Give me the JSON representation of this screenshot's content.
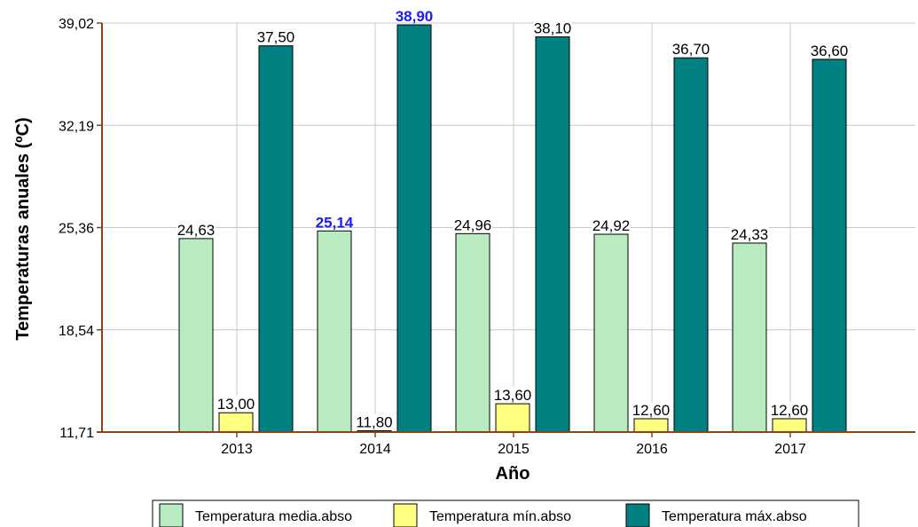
{
  "chart_data": {
    "type": "bar",
    "title": "",
    "xlabel": "Año",
    "ylabel": "Temperaturas anuales (ºC)",
    "categories": [
      "2013",
      "2014",
      "2015",
      "2016",
      "2017"
    ],
    "y_ticks": [
      "11,71",
      "18,54",
      "25,36",
      "32,19",
      "39,02"
    ],
    "ylim": [
      11.71,
      39.02
    ],
    "grid": true,
    "legend_position": "bottom",
    "series": [
      {
        "name": "Temperatura media.abso",
        "color": "#b8ebc0",
        "values": [
          24.63,
          25.14,
          24.96,
          24.92,
          24.33
        ],
        "labels": [
          "24,63",
          "25,14",
          "24,96",
          "24,92",
          "24,33"
        ],
        "highlight": [
          false,
          true,
          false,
          false,
          false
        ]
      },
      {
        "name": "Temperatura mín.abso",
        "color": "#ffff80",
        "values": [
          13.0,
          11.8,
          13.6,
          12.6,
          12.6
        ],
        "labels": [
          "13,00",
          "11,80",
          "13,60",
          "12,60",
          "12,60"
        ],
        "highlight": [
          false,
          false,
          false,
          false,
          false
        ]
      },
      {
        "name": "Temperatura máx.abso",
        "color": "#008080",
        "values": [
          37.5,
          38.9,
          38.1,
          36.7,
          36.6
        ],
        "labels": [
          "37,50",
          "38,90",
          "38,10",
          "36,70",
          "36,60"
        ],
        "highlight": [
          false,
          true,
          false,
          false,
          false
        ]
      }
    ],
    "colors": {
      "highlight_label": "#1a1aff",
      "baseline": "#8b4513",
      "grid": "#c8c8c8"
    }
  }
}
